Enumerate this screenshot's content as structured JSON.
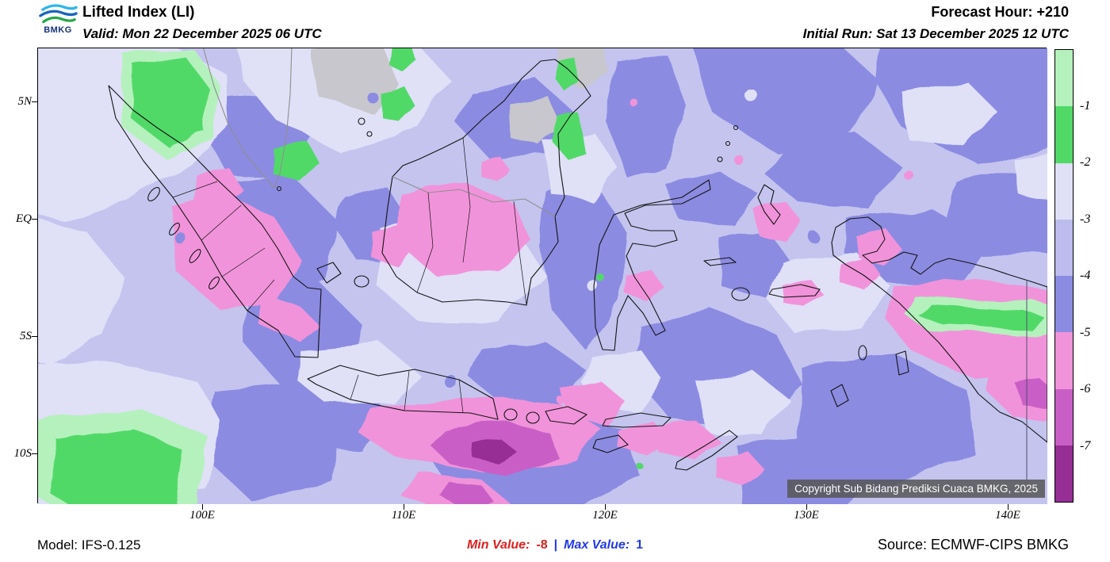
{
  "header": {
    "logo_text": "BMKG",
    "title": "Lifted Index (LI)",
    "valid_line": "Valid: Mon 22 December 2025 06 UTC",
    "forecast_hour": "Forecast Hour: +210",
    "initial_run": "Initial Run: Sat 13 December 2025 12 UTC"
  },
  "map": {
    "x_ticks": [
      "100E",
      "110E",
      "120E",
      "130E",
      "140E"
    ],
    "y_ticks": [
      "5N",
      "EQ",
      "5S",
      "10S"
    ],
    "copyright": "Copyright Sub Bidang Prediksi Cuaca BMKG, 2025",
    "base_color": "#c4c4ef"
  },
  "legend": {
    "band_colors": [
      "#b5f1bd",
      "#51d968",
      "#e0e0f7",
      "#bcbcee",
      "#8b8be2",
      "#f193da",
      "#c95fc6",
      "#962e96"
    ],
    "labels": [
      "-1",
      "-2",
      "-3",
      "-4",
      "-5",
      "-6",
      "-7"
    ]
  },
  "footer": {
    "model": "Model: IFS-0.125",
    "min_label": "Min Value:",
    "min_value": "-8",
    "separator": "|",
    "max_label": "Max Value:",
    "max_value": "1",
    "min_color": "#e01f1f",
    "max_color": "#2238e8",
    "source": "Source: ECMWF-CIPS BMKG"
  }
}
